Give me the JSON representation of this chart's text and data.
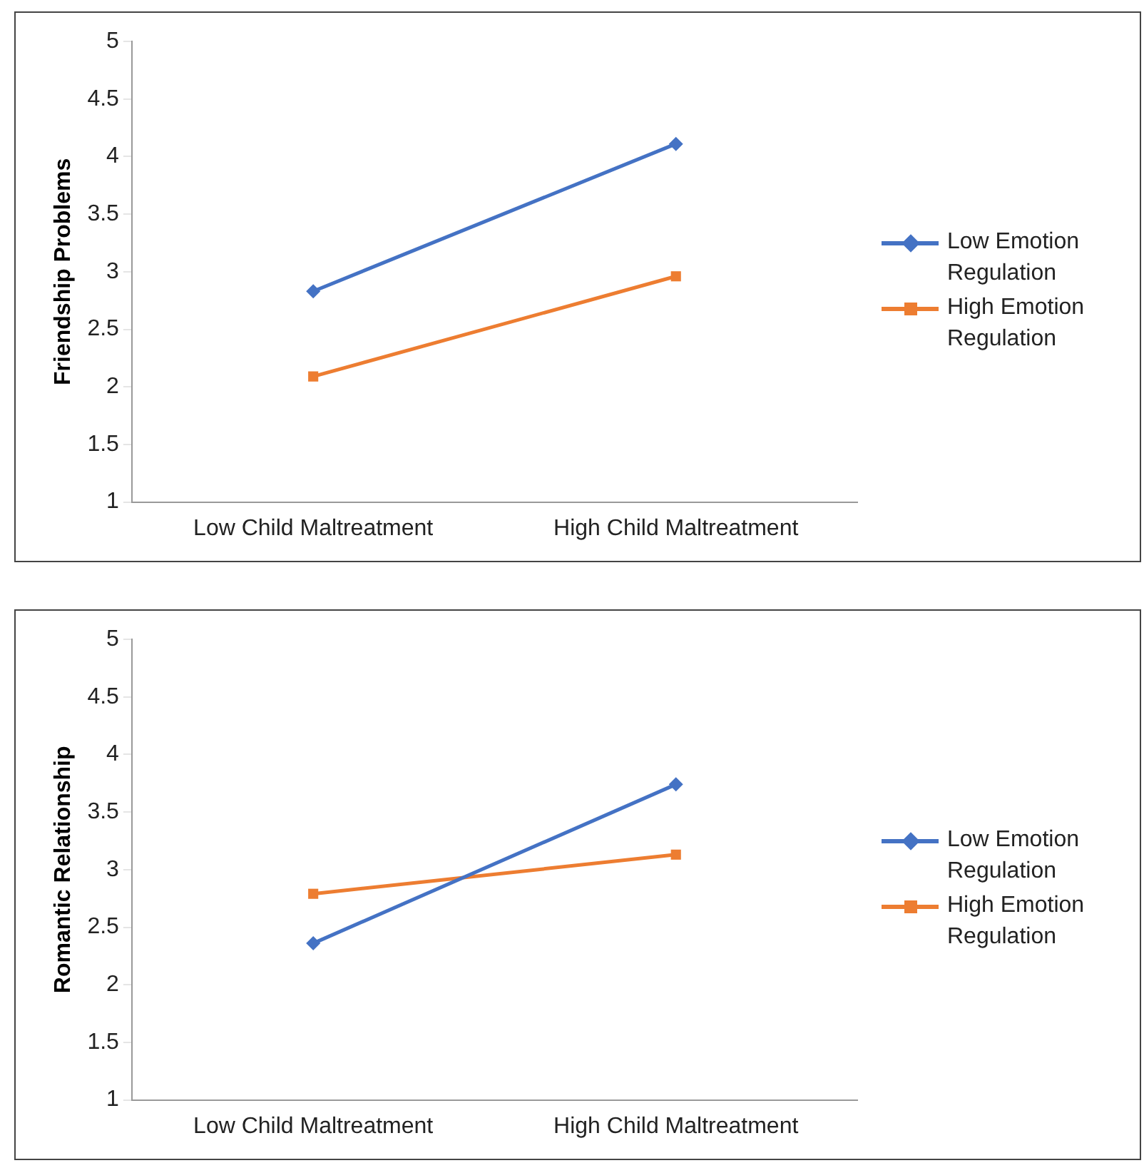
{
  "chart_data": [
    {
      "type": "line",
      "ylabel": "Friendship Problems",
      "categories": [
        "Low Child Maltreatment",
        "High Child Maltreatment"
      ],
      "ylim": [
        1,
        5
      ],
      "yticks": [
        1,
        1.5,
        2,
        2.5,
        3,
        3.5,
        4,
        4.5,
        5
      ],
      "grid": false,
      "legend": "right",
      "line_style": "solid",
      "series": [
        {
          "name": "Low Emotion Regulation",
          "color": "#4472c4",
          "marker": "diamond",
          "values": [
            2.83,
            4.11
          ]
        },
        {
          "name": "High Emotion Regulation",
          "color": "#ed7d31",
          "marker": "square",
          "values": [
            2.09,
            2.96
          ]
        }
      ]
    },
    {
      "type": "line",
      "ylabel": "Romantic Relationship",
      "categories": [
        "Low Child Maltreatment",
        "High Child Maltreatment"
      ],
      "ylim": [
        1,
        5
      ],
      "yticks": [
        1,
        1.5,
        2,
        2.5,
        3,
        3.5,
        4,
        4.5,
        5
      ],
      "grid": false,
      "legend": "right",
      "line_style": "solid",
      "series": [
        {
          "name": "Low Emotion Regulation",
          "color": "#4472c4",
          "marker": "diamond",
          "values": [
            2.36,
            3.74
          ]
        },
        {
          "name": "High Emotion Regulation",
          "color": "#ed7d31",
          "marker": "square",
          "values": [
            2.79,
            3.13
          ]
        }
      ]
    }
  ]
}
